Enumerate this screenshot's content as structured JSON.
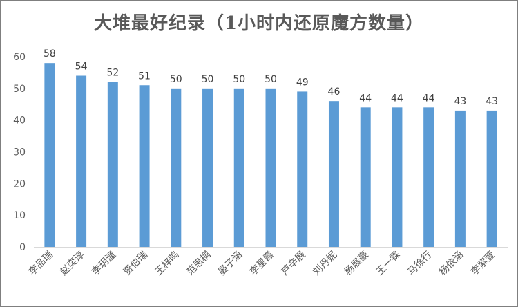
{
  "chart_data": {
    "type": "bar",
    "title": "大堆最好纪录（1小时内还原魔方数量）",
    "xlabel": "",
    "ylabel": "",
    "ylim": [
      0,
      60
    ],
    "yticks": [
      0,
      10,
      20,
      30,
      40,
      50,
      60
    ],
    "grid": false,
    "legend": "none",
    "bar_color": "#5b9bd5",
    "categories": [
      "李品瑞",
      "赵奕淳",
      "李玥潼",
      "贾伯瑞",
      "王梓鸣",
      "范思桐",
      "晏子涵",
      "李星霞",
      "芦辛展",
      "刘丹妮",
      "杨展豪",
      "王一霖",
      "马徐行",
      "杨依涵",
      "李紫萱"
    ],
    "values": [
      58,
      54,
      52,
      51,
      50,
      50,
      50,
      50,
      49,
      46,
      44,
      44,
      44,
      43,
      43
    ]
  }
}
